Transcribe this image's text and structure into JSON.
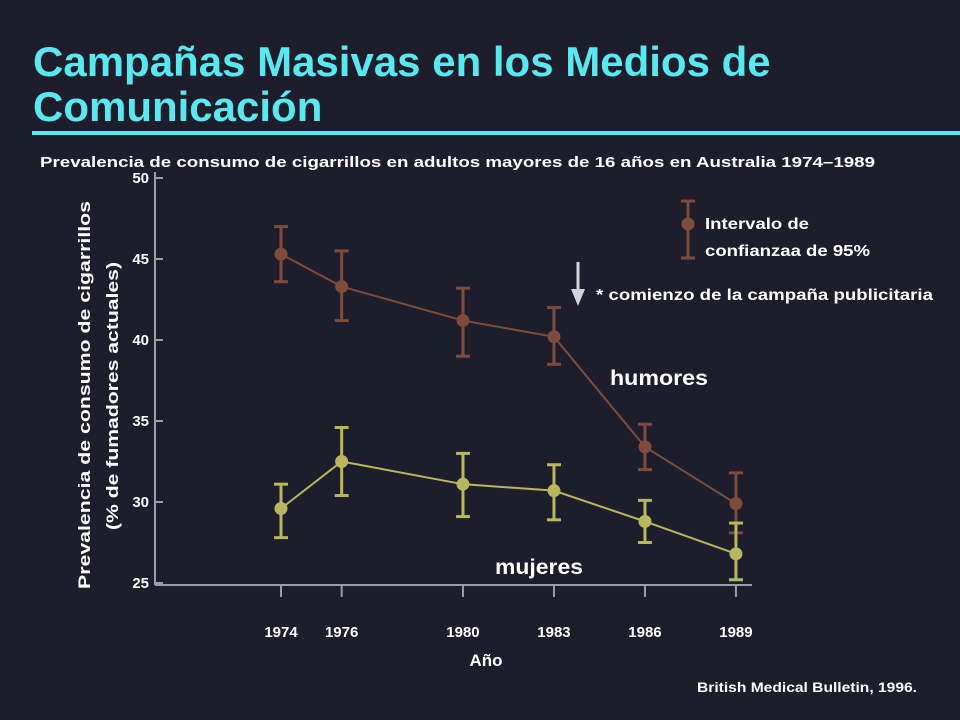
{
  "slide": {
    "title_line1": "Campañas Masivas en los Medios de",
    "title_line2": "Comunicación",
    "source": "British Medical Bulletin, 1996.",
    "background_color": "#1d1d2b",
    "title_color": "#5ae8f0",
    "text_color": "#ffffff",
    "axis_color": "#9d9da8"
  },
  "chart_data": {
    "type": "line",
    "title": "Prevalencia de consumo de cigarrillos en adultos mayores de 16 años en Australia 1974–1989",
    "xlabel": "Año",
    "ylabel": [
      "Prevalencia de consumo de cigarrillos",
      "(% de fumadores actuales)"
    ],
    "x": [
      1974,
      1976,
      1980,
      1983,
      1986,
      1989
    ],
    "ylim": [
      25,
      50
    ],
    "yticks": [
      25,
      30,
      35,
      40,
      45,
      50
    ],
    "grid": false,
    "series": [
      {
        "name": "humores",
        "color": "#7e4c3c",
        "values": [
          45.3,
          43.3,
          41.2,
          40.2,
          33.4,
          29.9
        ],
        "ci_low": [
          43.6,
          41.2,
          39.0,
          38.5,
          32.0,
          28.1
        ],
        "ci_high": [
          47.0,
          45.5,
          43.2,
          42.0,
          34.8,
          31.8
        ]
      },
      {
        "name": "mujeres",
        "color": "#b8b75d",
        "values": [
          29.6,
          32.5,
          31.1,
          30.7,
          28.8,
          26.8
        ],
        "ci_low": [
          27.8,
          30.4,
          29.1,
          28.9,
          27.5,
          25.2
        ],
        "ci_high": [
          31.1,
          34.6,
          33.0,
          32.3,
          30.1,
          28.7
        ]
      }
    ],
    "legend": {
      "lines": [
        "Intervalo de",
        "confianzaa de 95%"
      ],
      "placement": "top-right",
      "marker_color": "#7e4c3c"
    },
    "annotation": {
      "text": "* comienzo de la campaña publicitaria",
      "marker": "down-arrow-icon",
      "color": "#d3d3db"
    }
  }
}
